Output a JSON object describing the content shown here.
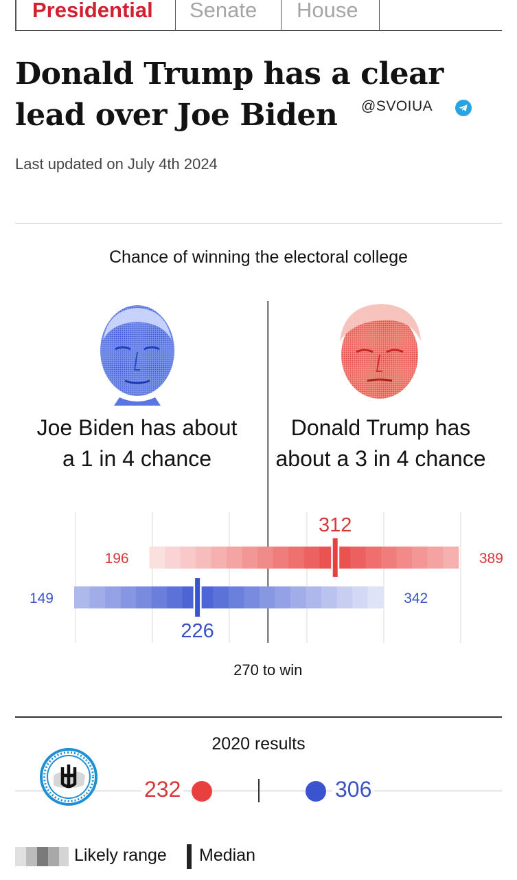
{
  "tabs": {
    "presidential": "Presidential",
    "senate": "Senate",
    "house": "House"
  },
  "headline": "Donald Trump has a clear lead over Joe Biden",
  "watermark": "@SVOIUA",
  "last_updated": "Last updated on July 4th 2024",
  "candidates": {
    "biden": {
      "line1": "Joe Biden has about",
      "line2": "a 1 in 4 chance"
    },
    "trump": {
      "line1": "Donald Trump has",
      "line2": "about a 3 in 4 chance"
    }
  },
  "results_2020": {
    "title": "2020 results",
    "rep_votes": "232",
    "dem_votes": "306"
  },
  "legend": {
    "likely_range": "Likely range",
    "median": "Median"
  },
  "colors": {
    "republican": "#e8403e",
    "democrat": "#3a54d0",
    "headline_red": "#d2202f"
  },
  "chart_data": {
    "type": "bar",
    "title": "Chance of winning the electoral college",
    "threshold_label": "270 to win",
    "threshold": 270,
    "xlim": [
      100,
      400
    ],
    "series": [
      {
        "name": "Donald Trump",
        "party": "republican",
        "low": 196,
        "median": 312,
        "high": 389,
        "low_label": "196",
        "median_label": "312",
        "high_label": "389"
      },
      {
        "name": "Joe Biden",
        "party": "democrat",
        "low": 149,
        "median": 226,
        "high": 342,
        "low_label": "149",
        "median_label": "226",
        "high_label": "342"
      }
    ]
  }
}
